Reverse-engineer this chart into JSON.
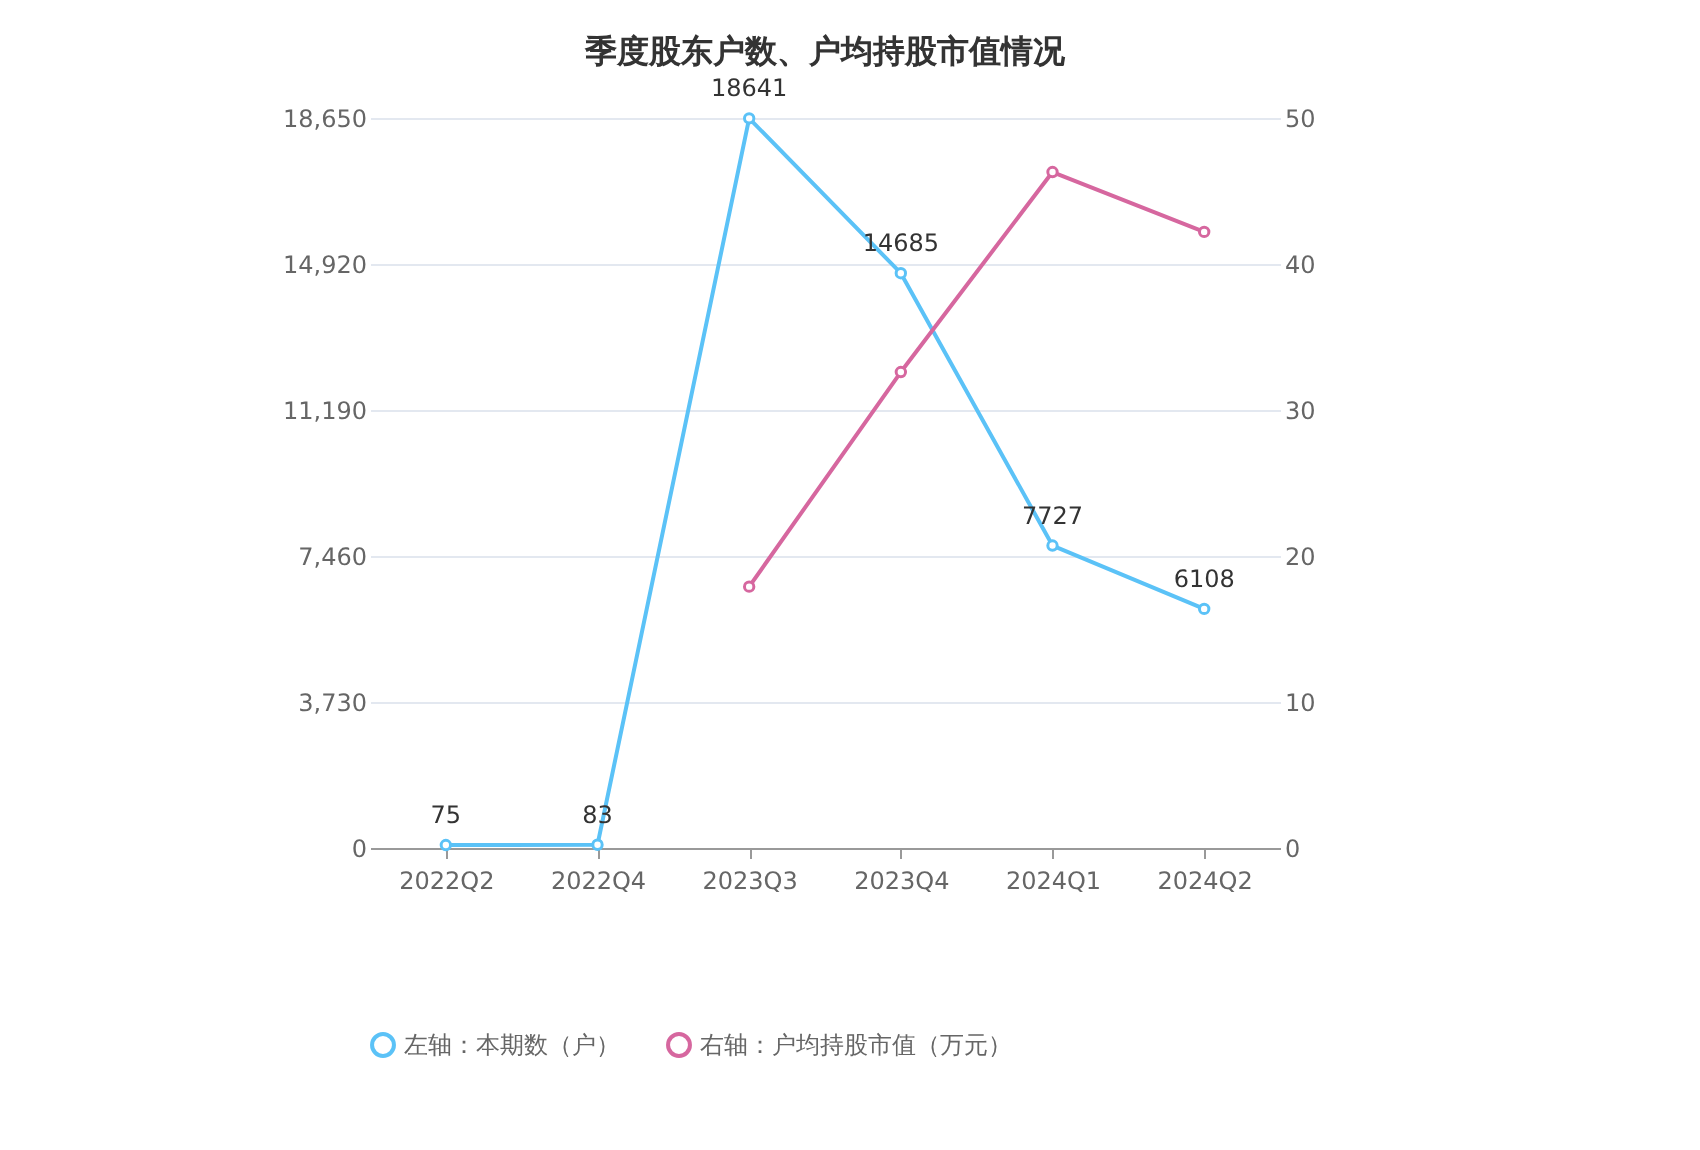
{
  "chart_data": {
    "type": "line",
    "title": "季度股东户数、户均持股市值情况",
    "categories": [
      "2022Q2",
      "2022Q4",
      "2023Q3",
      "2023Q4",
      "2024Q1",
      "2024Q2"
    ],
    "series": [
      {
        "name": "左轴：本期数（户）",
        "color": "#5bc2f7",
        "values": [
          75,
          83,
          18641,
          14685,
          7727,
          6108
        ],
        "value_labels": [
          "75",
          "83",
          "18641",
          "14685",
          "7727",
          "6108"
        ]
      },
      {
        "name": "右轴：户均持股市值（万元）",
        "color": "#d6679f",
        "axis": "y2",
        "values": [
          null,
          null,
          17.9,
          32.6,
          46.3,
          42.2
        ]
      }
    ],
    "ylim": [
      0,
      18650
    ],
    "yticks": [
      0,
      {
        "value": 3730,
        "label": "3,730"
      },
      {
        "value": 7460,
        "label": "7,460"
      },
      {
        "value": 11190,
        "label": "11,190"
      },
      {
        "value": 14920,
        "label": "14,920"
      },
      {
        "value": 18650,
        "label": "18,650"
      }
    ],
    "y2lim": [
      0,
      50
    ],
    "y2ticks": [
      0,
      10,
      20,
      30,
      40,
      50
    ],
    "grid": "y",
    "legend": "bottom",
    "marker": "circle",
    "line_style": "solid"
  }
}
